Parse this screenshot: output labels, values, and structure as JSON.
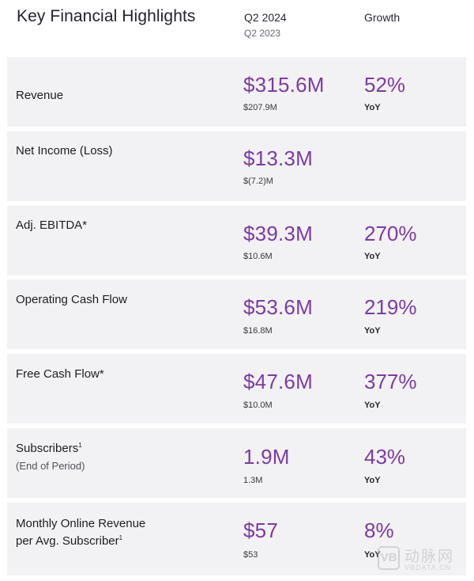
{
  "header": {
    "title": "Key Financial Highlights",
    "period": "Q2 2024",
    "prior_period": "Q2 2023",
    "growth": "Growth"
  },
  "rows": [
    {
      "label": "Revenue",
      "value": "$315.6M",
      "prior": "$207.9M",
      "growth": "52%",
      "yoy": "YoY"
    },
    {
      "label": "Net Income (Loss)",
      "value": "$13.3M",
      "prior": "$(7.2)M"
    },
    {
      "label": "Adj. EBITDA*",
      "value": "$39.3M",
      "prior": "$10.6M",
      "growth": "270%",
      "yoy": "YoY"
    },
    {
      "label": "Operating Cash Flow",
      "value": "$53.6M",
      "prior": "$16.8M",
      "growth": "219%",
      "yoy": "YoY"
    },
    {
      "label": "Free Cash Flow*",
      "value": "$47.6M",
      "prior": "$10.0M",
      "growth": "377%",
      "yoy": "YoY"
    },
    {
      "label": "Subscribers",
      "sup": "1",
      "sub_label": "(End of Period)",
      "value": "1.9M",
      "prior": "1.3M",
      "growth": "43%",
      "yoy": "YoY"
    },
    {
      "label_line1": "Monthly Online Revenue",
      "label_line2": "per Avg. Subscriber",
      "sup": "1",
      "value": "$57",
      "prior": "$53",
      "growth": "8%",
      "yoy": "YoY"
    }
  ],
  "watermark": {
    "logo": "VB",
    "cn": "动脉网",
    "en": "VBDATA.CN"
  },
  "colors": {
    "accent": "#7b3ca0",
    "row_bg": "#f2f1f3"
  }
}
